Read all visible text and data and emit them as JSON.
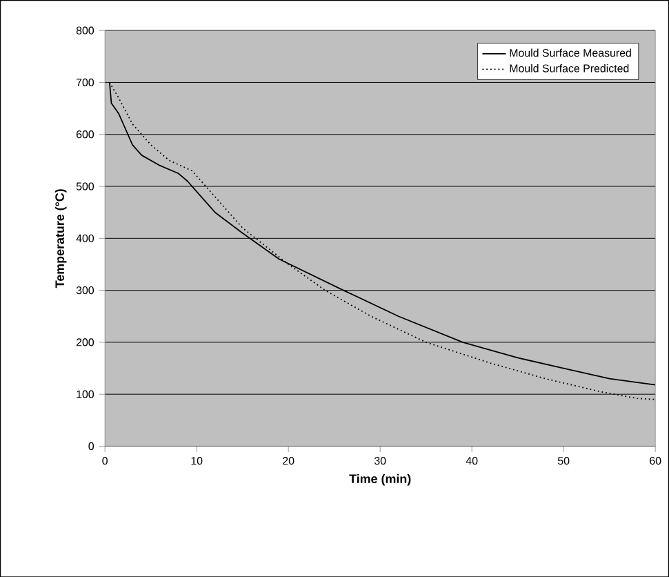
{
  "chart_data": {
    "type": "line",
    "xlabel": "Time (min)",
    "ylabel": "Temperature (°C)",
    "xlim": [
      0,
      60
    ],
    "xticks": [
      0,
      10,
      20,
      30,
      40,
      50,
      60
    ],
    "ylim": [
      0,
      800
    ],
    "yticks": [
      0,
      100,
      200,
      300,
      400,
      500,
      600,
      700,
      800
    ],
    "grid": "y",
    "legend": "top right",
    "series": [
      {
        "name": "Mould Surface Measured",
        "color": "#000000",
        "line_style": "solid",
        "x": [
          0.5,
          0.7,
          1.5,
          2.5,
          3,
          4,
          6,
          8,
          9,
          10,
          12,
          15,
          19,
          26,
          32,
          39,
          45,
          50,
          55,
          60
        ],
        "values": [
          700,
          660,
          640,
          600,
          580,
          560,
          540,
          525,
          510,
          490,
          450,
          410,
          360,
          300,
          250,
          200,
          170,
          150,
          130,
          118
        ]
      },
      {
        "name": "Mould Surface Predicted",
        "color": "#000000",
        "line_style": "dotted",
        "x": [
          0.5,
          1.5,
          3,
          5,
          7,
          9.5,
          11,
          15,
          20,
          24,
          29,
          35,
          42,
          48,
          54,
          58,
          60
        ],
        "values": [
          700,
          670,
          620,
          580,
          550,
          530,
          500,
          420,
          350,
          300,
          250,
          200,
          160,
          130,
          105,
          92,
          90
        ]
      }
    ]
  }
}
